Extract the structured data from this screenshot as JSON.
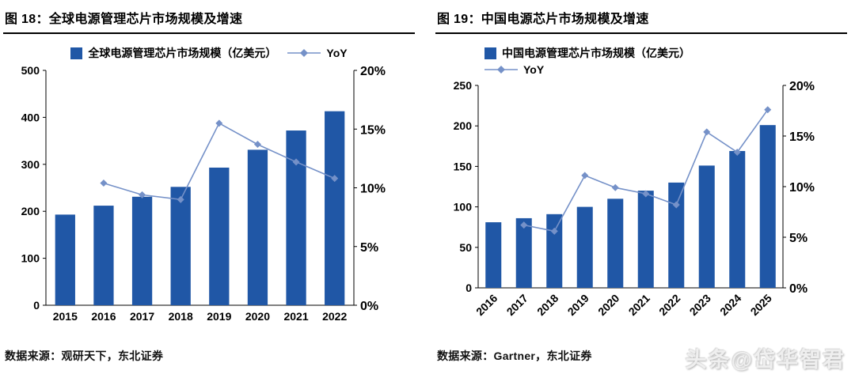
{
  "watermark": "头条@岱华智君",
  "chart_data": [
    {
      "type": "bar",
      "title": "图  18：全球电源管理芯片市场规模及增速",
      "categories": [
        "2015",
        "2016",
        "2017",
        "2018",
        "2019",
        "2020",
        "2021",
        "2022"
      ],
      "series": [
        {
          "name": "全球电源管理芯片市场规模（亿美元）",
          "type": "bar",
          "axis": "left",
          "values": [
            193,
            212,
            231,
            252,
            293,
            331,
            372,
            413
          ]
        },
        {
          "name": "YoY",
          "type": "line",
          "axis": "right",
          "values": [
            null,
            10.4,
            9.4,
            9.0,
            15.5,
            13.7,
            12.2,
            10.8
          ]
        }
      ],
      "left_axis": {
        "min": 0,
        "max": 500,
        "ticks": [
          0,
          100,
          200,
          300,
          400,
          500
        ]
      },
      "right_axis": {
        "min": 0,
        "max": 20,
        "ticks": [
          "0%",
          "5%",
          "10%",
          "15%",
          "20%"
        ]
      },
      "legend_position": "top",
      "legend_layout": "horizontal",
      "x_label_rotate": false,
      "grid": false,
      "colors": {
        "bar": "#2057A6",
        "line": "#7591C8"
      },
      "source": "数据来源：观研天下，东北证券"
    },
    {
      "type": "bar",
      "title": "图  19：中国电源芯片市场规模及增速",
      "categories": [
        "2016",
        "2017",
        "2018",
        "2019",
        "2020",
        "2021",
        "2022",
        "2023",
        "2024",
        "2025"
      ],
      "series": [
        {
          "name": "中国电源管理芯片市场规模（亿美元）",
          "type": "bar",
          "axis": "left",
          "values": [
            81,
            86,
            91,
            100,
            110,
            120,
            130,
            151,
            169,
            201
          ]
        },
        {
          "name": "YoY",
          "type": "line",
          "axis": "right",
          "values": [
            null,
            6.2,
            5.6,
            11.1,
            9.9,
            9.3,
            8.2,
            15.4,
            13.4,
            17.6
          ]
        }
      ],
      "left_axis": {
        "min": 0,
        "max": 250,
        "ticks": [
          0,
          50,
          100,
          150,
          200,
          250
        ]
      },
      "right_axis": {
        "min": 0,
        "max": 20,
        "ticks": [
          "0%",
          "5%",
          "10%",
          "15%",
          "20%"
        ]
      },
      "legend_position": "top",
      "legend_layout": "vertical",
      "x_label_rotate": true,
      "grid": false,
      "colors": {
        "bar": "#2057A6",
        "line": "#7591C8"
      },
      "source": "数据来源：Gartner，东北证券"
    }
  ]
}
